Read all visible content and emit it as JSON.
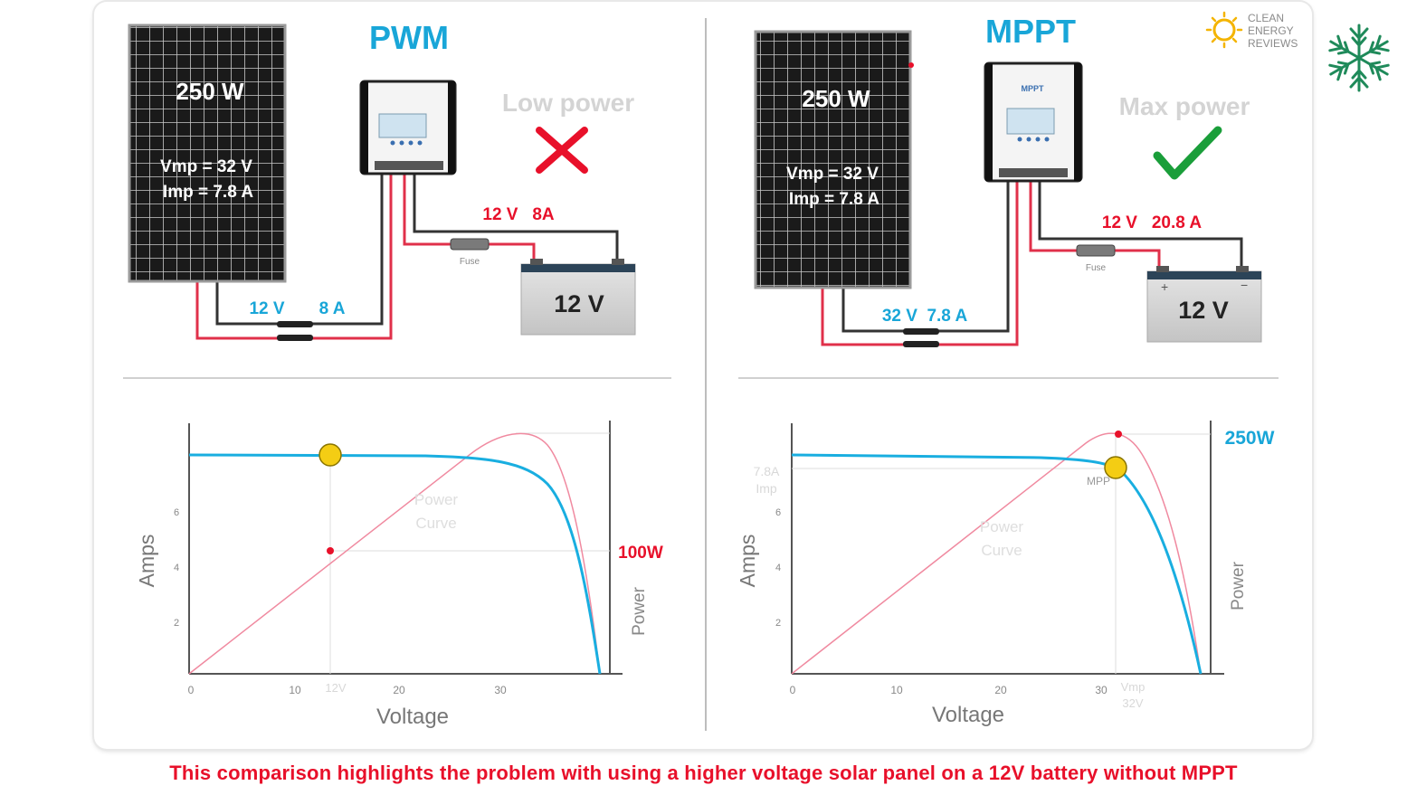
{
  "caption": "This comparison highlights the problem with using a higher voltage solar panel on a 12V battery without MPPT",
  "logo": {
    "text_lines": [
      "CLEAN",
      "ENERGY",
      "REVIEWS"
    ],
    "icon": "sun-icon"
  },
  "corner_icon": "snowflake-icon",
  "colors": {
    "accent_blue": "#19a6d8",
    "red": "#e8102a",
    "green": "#1a9e3a",
    "curve_blue": "#19aee0",
    "curve_pink": "#f08aa0",
    "dot_yellow": "#f4cd14"
  },
  "pwm": {
    "title": "PWM",
    "panel": {
      "watts": "250 W",
      "vmp": "Vmp = 32 V",
      "imp": "Imp  = 7.8 A"
    },
    "status": "Low power",
    "status_icon": "cross-icon",
    "battery": "12 V",
    "fuse": "Fuse",
    "output_label": "12 V   8A",
    "input_label_v": "12 V",
    "input_label_a": "8 A",
    "graph": {
      "ylabel": "Amps",
      "xlabel": "Voltage",
      "y2label": "Power",
      "power_label": "100W",
      "curve_label_1": "Power",
      "curve_label_2": "Curve",
      "xticks": [
        "0",
        "10",
        "20",
        "30"
      ],
      "yticks": [
        "2",
        "4",
        "6"
      ],
      "x_marker": "12V"
    }
  },
  "mppt": {
    "title": "MPPT",
    "controller_label": "MPPT",
    "panel": {
      "watts": "250 W",
      "vmp": "Vmp = 32 V",
      "imp": "Imp  = 7.8 A"
    },
    "status": "Max power",
    "status_icon": "check-icon",
    "battery": "12 V",
    "fuse": "Fuse",
    "output_label": "12 V   20.8 A",
    "input_label": "32 V  7.8 A",
    "graph": {
      "ylabel": "Amps",
      "xlabel": "Voltage",
      "y2label": "Power",
      "power_label": "250W",
      "curve_label_1": "Power",
      "curve_label_2": "Curve",
      "xticks": [
        "0",
        "10",
        "20",
        "30"
      ],
      "yticks": [
        "2",
        "4",
        "6"
      ],
      "imp_label_1": "7.8A",
      "imp_label_2": "Imp",
      "vmp_label_1": "Vmp",
      "vmp_label_2": "32V",
      "mpp_label": "MPP"
    }
  }
}
